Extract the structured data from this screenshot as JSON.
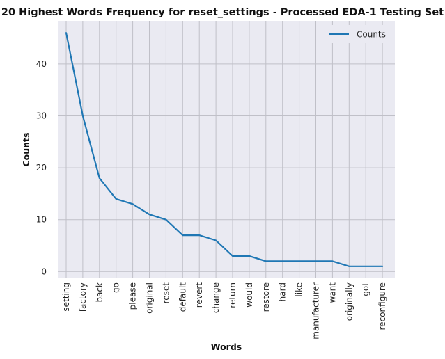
{
  "chart_data": {
    "type": "line",
    "title": "20 Highest Words Frequency for reset_settings - Processed EDA-1 Testing Set",
    "xlabel": "Words",
    "ylabel": "Counts",
    "categories": [
      "setting",
      "factory",
      "back",
      "go",
      "please",
      "original",
      "reset",
      "default",
      "revert",
      "change",
      "return",
      "would",
      "restore",
      "hard",
      "like",
      "manufacturer",
      "want",
      "originally",
      "got",
      "reconfigure"
    ],
    "series": [
      {
        "name": "Counts",
        "values": [
          46,
          30,
          18,
          14,
          13,
          11,
          10,
          7,
          7,
          6,
          3,
          3,
          2,
          2,
          2,
          2,
          2,
          1,
          1,
          1
        ]
      }
    ],
    "ylim": [
      -1.3,
      48.3
    ],
    "yticks": [
      0,
      10,
      20,
      30,
      40
    ],
    "grid": true,
    "legend": "top-right",
    "colors": {
      "line": "#1f77b4",
      "background": "#eaeaf2",
      "grid": "#c0c0c8"
    }
  }
}
